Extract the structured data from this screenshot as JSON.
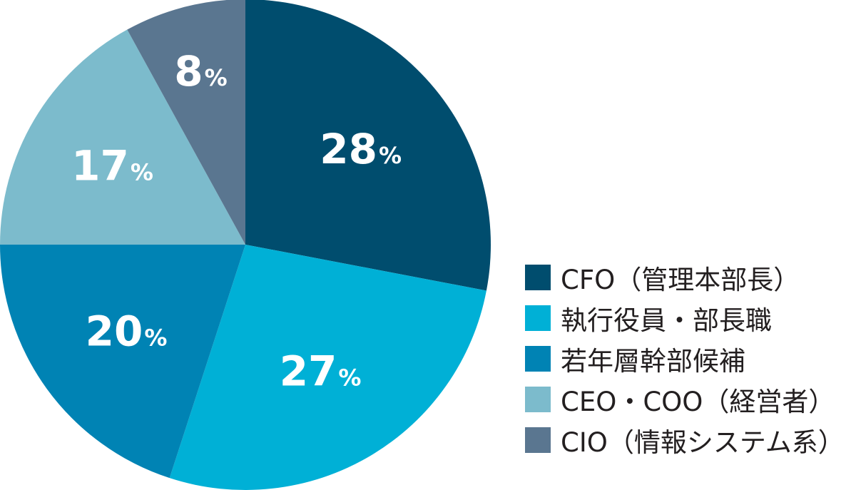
{
  "chart_data": {
    "type": "pie",
    "title": "",
    "slices": [
      {
        "label": "CFO（管理本部長）",
        "value": 28,
        "value_label": "28",
        "unit": "%",
        "color": "#004d6e"
      },
      {
        "label": "執行役員・部長職",
        "value": 27,
        "value_label": "27",
        "unit": "%",
        "color": "#00b0d6"
      },
      {
        "label": "若年層幹部候補",
        "value": 20,
        "value_label": "20",
        "unit": "%",
        "color": "#0083b4"
      },
      {
        "label": "CEO・COO（経営者）",
        "value": 17,
        "value_label": "17",
        "unit": "%",
        "color": "#7cbbcc"
      },
      {
        "label": "CIO（情報システム系）",
        "value": 8,
        "value_label": "8",
        "unit": "%",
        "color": "#5a7690"
      }
    ],
    "start": "12 o'clock",
    "direction": "clockwise",
    "legend_position": "bottom-right"
  }
}
